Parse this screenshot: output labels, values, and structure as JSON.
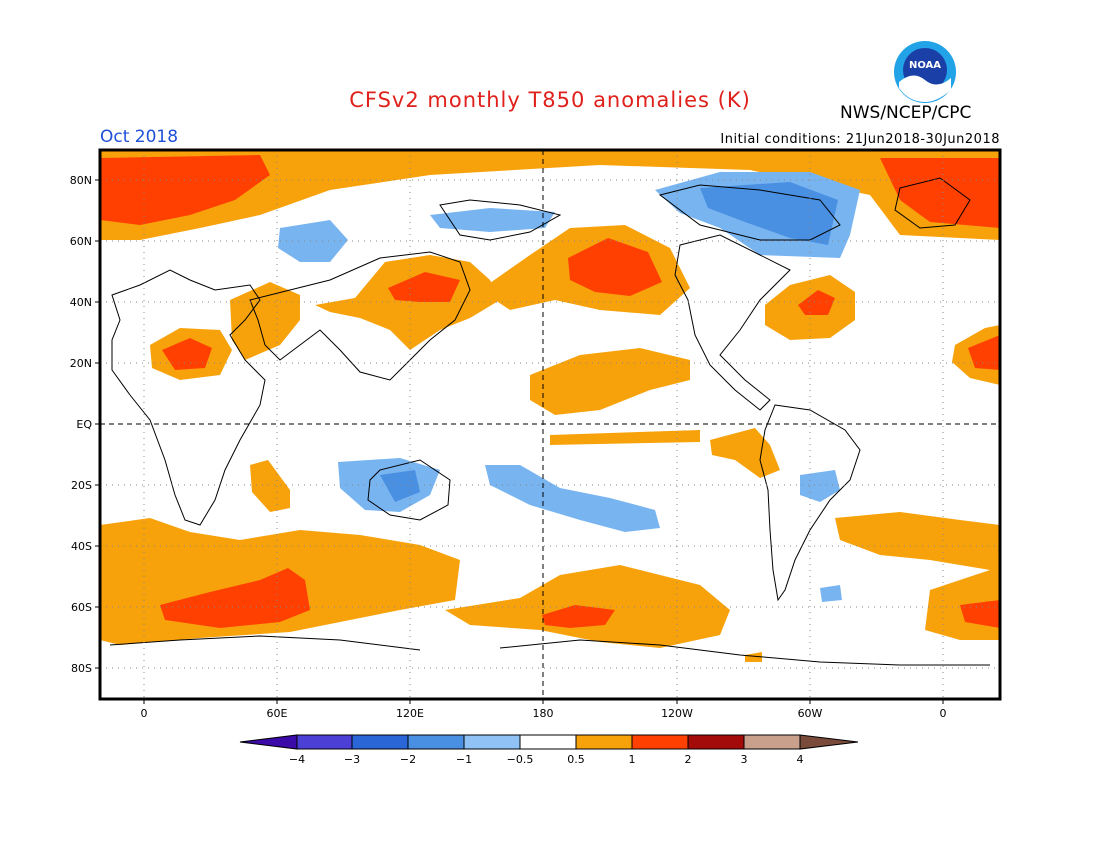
{
  "header": {
    "title": "CFSv2 monthly T850 anomalies (K)",
    "period": "Oct 2018",
    "agency": "NWS/NCEP/CPC",
    "initial_conditions": "Initial conditions: 21Jun2018-30Jun2018",
    "logo_text": "NOAA"
  },
  "map": {
    "lat_labels": [
      "80N",
      "60N",
      "40N",
      "20N",
      "EQ",
      "20S",
      "40S",
      "60S",
      "80S"
    ],
    "lon_labels": [
      "0",
      "60E",
      "120E",
      "180",
      "120W",
      "60W",
      "0"
    ],
    "colors": {
      "ocean_neutral": "#ffffff",
      "warm_0_5_1": "#f7a20a",
      "warm_1_2": "#ff4000",
      "cool_m1_m0_5": "#78b4f0",
      "cool_m2_m1": "#4a90e2",
      "coastline": "#000000"
    }
  },
  "legend": {
    "ticks": [
      "−4",
      "−3",
      "−2",
      "−1",
      "−0.5",
      "0.5",
      "1",
      "2",
      "3",
      "4"
    ],
    "colors": [
      "#3b0aa8",
      "#4b3fd6",
      "#2a66d6",
      "#4a90e2",
      "#90c2f5",
      "#ffffff",
      "#f7a20a",
      "#ff4000",
      "#a30a0a",
      "#c8a08c",
      "#7a4a3a"
    ]
  }
}
